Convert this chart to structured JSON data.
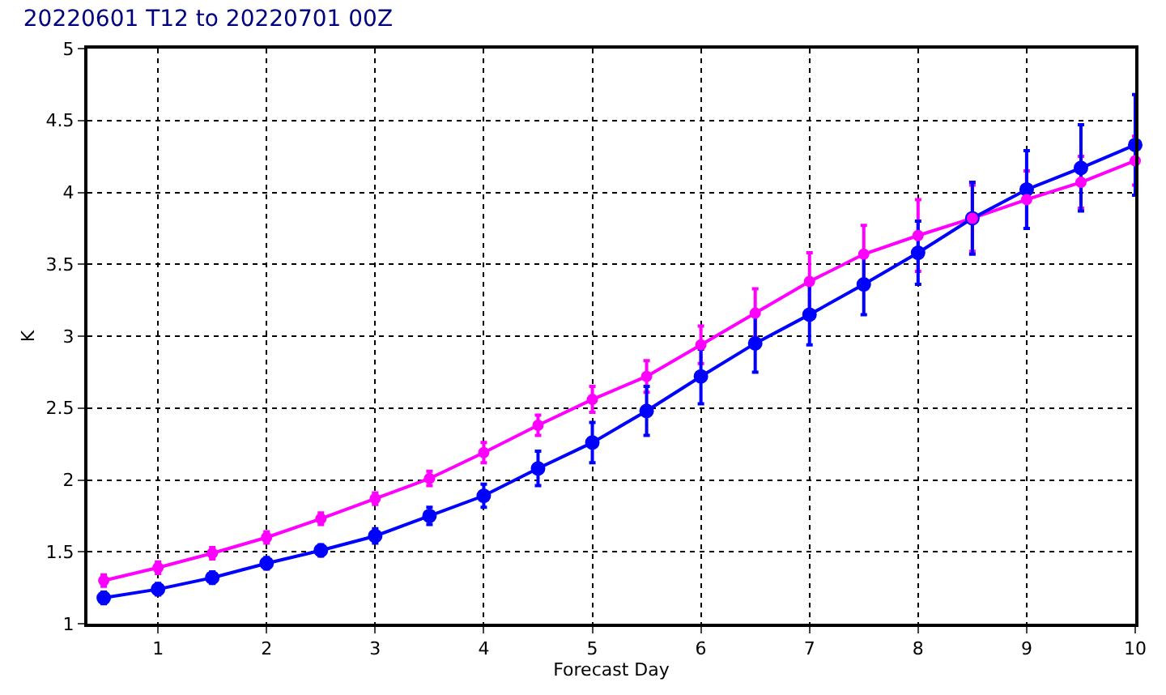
{
  "chart_data": {
    "type": "line",
    "title": "20220601 T12 to 20220701 00Z",
    "xlabel": "Forecast Day",
    "ylabel": "K",
    "x": [
      0.5,
      1,
      1.5,
      2,
      2.5,
      3,
      3.5,
      4,
      4.5,
      5,
      5.5,
      6,
      6.5,
      7,
      7.5,
      8,
      8.5,
      9,
      9.5,
      10
    ],
    "series": [
      {
        "color": "#ff00ff",
        "values": [
          1.3,
          1.39,
          1.49,
          1.6,
          1.73,
          1.87,
          2.01,
          2.19,
          2.38,
          2.56,
          2.72,
          2.94,
          3.16,
          3.38,
          3.57,
          3.7,
          3.82,
          3.95,
          4.07,
          4.22
        ],
        "errors": [
          0.04,
          0.04,
          0.04,
          0.04,
          0.04,
          0.04,
          0.05,
          0.07,
          0.07,
          0.09,
          0.11,
          0.13,
          0.17,
          0.2,
          0.2,
          0.25,
          0.23,
          0.2,
          0.18,
          0.17
        ]
      },
      {
        "color": "#0000ff",
        "values": [
          1.18,
          1.24,
          1.32,
          1.42,
          1.51,
          1.61,
          1.75,
          1.89,
          2.08,
          2.26,
          2.48,
          2.72,
          2.95,
          3.15,
          3.36,
          3.58,
          3.82,
          4.02,
          4.17,
          4.33
        ],
        "errors": [
          0.04,
          0.04,
          0.04,
          0.04,
          0.04,
          0.05,
          0.06,
          0.08,
          0.12,
          0.14,
          0.17,
          0.19,
          0.2,
          0.21,
          0.21,
          0.22,
          0.25,
          0.27,
          0.3,
          0.35
        ]
      }
    ],
    "xlim": [
      0.35,
      10
    ],
    "xticks": [
      1,
      2,
      3,
      4,
      5,
      6,
      7,
      8,
      9,
      10
    ],
    "ylim": [
      1,
      5
    ],
    "yticks": [
      1,
      1.5,
      2,
      2.5,
      3,
      3.5,
      4,
      4.5,
      5
    ],
    "grid": true,
    "marker": "circle",
    "line_style": "solid"
  }
}
